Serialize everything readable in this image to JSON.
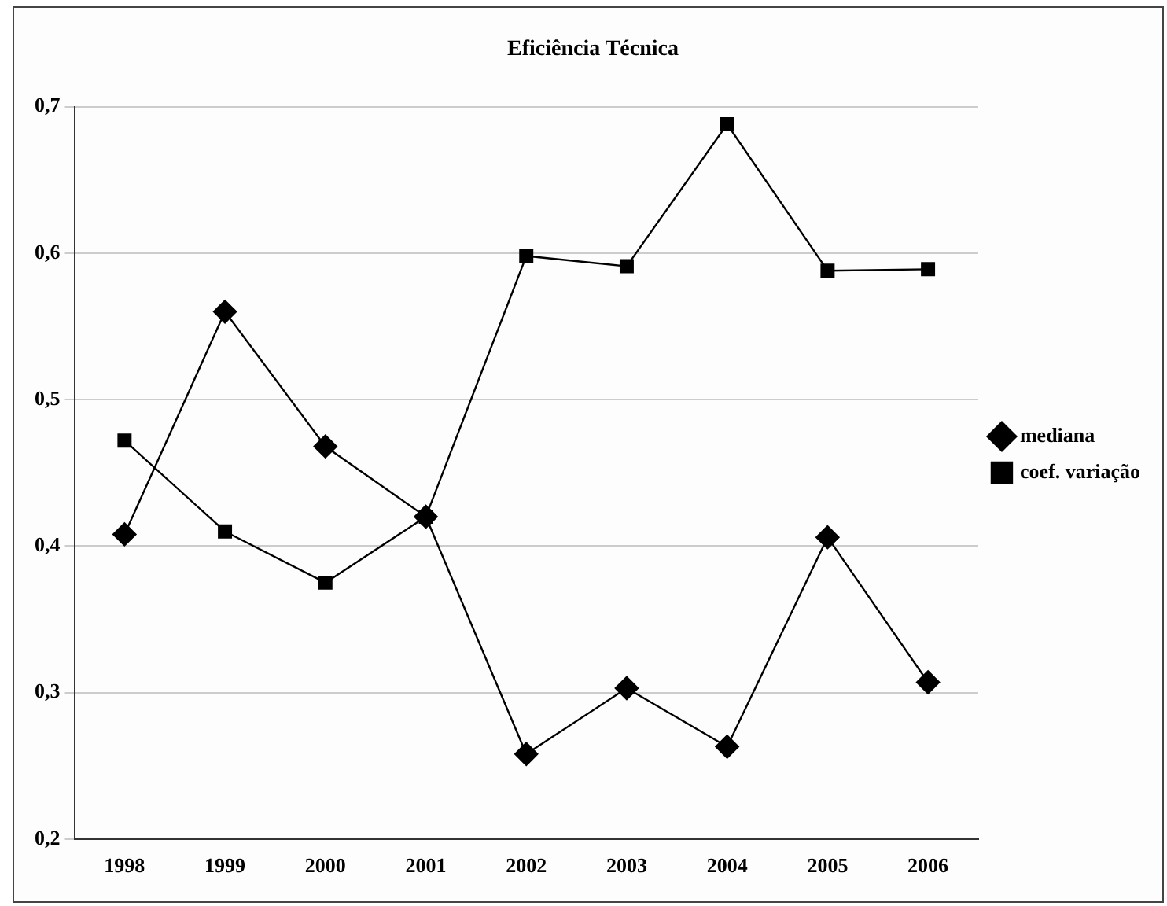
{
  "chart_data": {
    "type": "line",
    "title": "Eficiência Técnica",
    "categories": [
      "1998",
      "1999",
      "2000",
      "2001",
      "2002",
      "2003",
      "2004",
      "2005",
      "2006"
    ],
    "series": [
      {
        "name": "mediana",
        "color": "#000000",
        "marker": "diamond",
        "values": [
          0.408,
          0.56,
          0.468,
          0.42,
          0.258,
          0.303,
          0.263,
          0.406,
          0.307
        ]
      },
      {
        "name": "coef. variação",
        "color": "#000000",
        "marker": "square",
        "values": [
          0.472,
          0.41,
          0.375,
          0.42,
          0.598,
          0.591,
          0.688,
          0.588,
          0.589
        ]
      }
    ],
    "ylim": [
      0.2,
      0.7
    ],
    "yticks": [
      {
        "value": 0.2,
        "label": "0,2"
      },
      {
        "value": 0.3,
        "label": "0,3"
      },
      {
        "value": 0.4,
        "label": "0,4"
      },
      {
        "value": 0.5,
        "label": "0,5"
      },
      {
        "value": 0.6,
        "label": "0,6"
      },
      {
        "value": 0.7,
        "label": "0,7"
      }
    ],
    "grid": "y",
    "legend": "right"
  }
}
